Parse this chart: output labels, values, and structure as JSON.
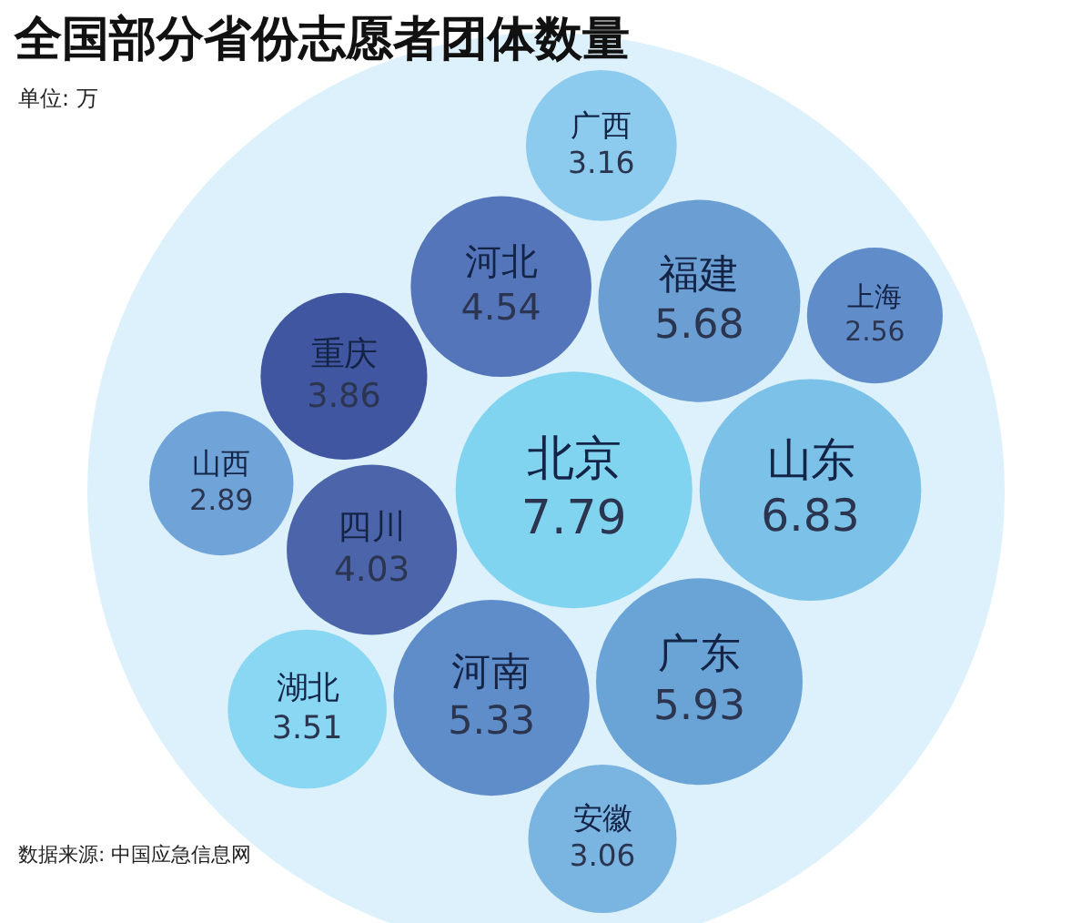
{
  "chart_data": {
    "type": "other",
    "title": "全国部分省份志愿者团体数量",
    "subtitle": "单位: 万",
    "categories": [
      "北京",
      "山东",
      "广东",
      "福建",
      "河南",
      "河北",
      "四川",
      "重庆",
      "湖北",
      "广西",
      "安徽",
      "山西",
      "上海"
    ],
    "values": [
      7.79,
      6.83,
      5.93,
      5.68,
      5.33,
      4.54,
      4.03,
      3.86,
      3.51,
      3.16,
      3.06,
      2.89,
      2.56
    ],
    "colors": [
      "#80d4f0",
      "#7cc1e7",
      "#6aa4d7",
      "#6b9fd3",
      "#5f8dca",
      "#5575ba",
      "#4b64aa",
      "#4156a0",
      "#89d7f2",
      "#8ccbee",
      "#7ab4e1",
      "#70a4d9",
      "#608dca"
    ],
    "data_labels": true,
    "annotations": [
      "数据来源: 中国应急信息网"
    ]
  }
}
